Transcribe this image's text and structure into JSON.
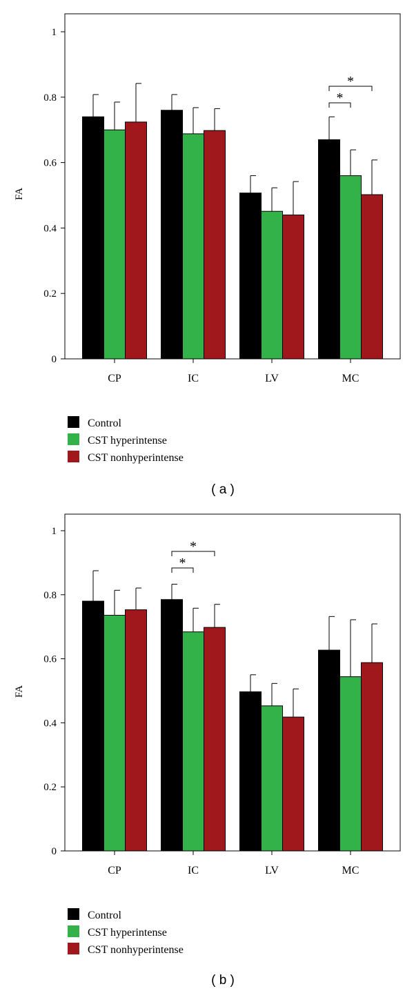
{
  "figure": {
    "colors": {
      "control": "#000000",
      "hyper": "#33b24a",
      "nonhyper": "#a0181c",
      "sig": "#e02020",
      "axis": "#000000"
    }
  },
  "chart_data": [
    {
      "type": "bar",
      "panel_label": "( a )",
      "ylabel": "FA",
      "xlabel": "",
      "ylim": [
        0,
        1
      ],
      "yticks": [
        0,
        0.2,
        0.4,
        0.6,
        0.8,
        1
      ],
      "ytick_labels": [
        "0",
        "0.2",
        "0.4",
        "0.6",
        "0.8",
        "1"
      ],
      "categories": [
        "CP",
        "IC",
        "LV",
        "MC"
      ],
      "series": [
        {
          "name": "Control",
          "color_key": "control",
          "values": [
            0.74,
            0.76,
            0.507,
            0.67
          ],
          "errors": [
            0.068,
            0.048,
            0.053,
            0.07
          ]
        },
        {
          "name": "CST hyperintense",
          "color_key": "hyper",
          "values": [
            0.7,
            0.688,
            0.451,
            0.56
          ],
          "errors": [
            0.085,
            0.08,
            0.072,
            0.079
          ]
        },
        {
          "name": "CST nonhyperintense",
          "color_key": "nonhyper",
          "values": [
            0.724,
            0.698,
            0.44,
            0.502
          ],
          "errors": [
            0.118,
            0.067,
            0.102,
            0.106
          ]
        }
      ],
      "significance": [
        {
          "category": "MC",
          "from_series": 0,
          "to_series": 1,
          "label": "*"
        },
        {
          "category": "MC",
          "from_series": 0,
          "to_series": 2,
          "label": "*"
        }
      ],
      "legend": [
        "Control",
        "CST hyperintense",
        "CST nonhyperintense"
      ],
      "legend_position": "bottom-left"
    },
    {
      "type": "bar",
      "panel_label": "( b )",
      "ylabel": "FA",
      "xlabel": "",
      "ylim": [
        0,
        1
      ],
      "yticks": [
        0,
        0.2,
        0.4,
        0.6,
        0.8,
        1
      ],
      "ytick_labels": [
        "0",
        "0.2",
        "0.4",
        "0.6",
        "0.8",
        "1"
      ],
      "categories": [
        "CP",
        "IC",
        "LV",
        "MC"
      ],
      "series": [
        {
          "name": "Control",
          "color_key": "control",
          "values": [
            0.78,
            0.785,
            0.497,
            0.627
          ],
          "errors": [
            0.095,
            0.048,
            0.053,
            0.105
          ]
        },
        {
          "name": "CST hyperintense",
          "color_key": "hyper",
          "values": [
            0.736,
            0.684,
            0.453,
            0.544
          ],
          "errors": [
            0.078,
            0.074,
            0.07,
            0.178
          ]
        },
        {
          "name": "CST nonhyperintense",
          "color_key": "nonhyper",
          "values": [
            0.753,
            0.698,
            0.418,
            0.588
          ],
          "errors": [
            0.068,
            0.072,
            0.088,
            0.121
          ]
        }
      ],
      "significance": [
        {
          "category": "IC",
          "from_series": 0,
          "to_series": 1,
          "label": "*"
        },
        {
          "category": "IC",
          "from_series": 0,
          "to_series": 2,
          "label": "*"
        }
      ],
      "legend": [
        "Control",
        "CST hyperintense",
        "CST nonhyperintense"
      ],
      "legend_position": "bottom-left"
    }
  ]
}
